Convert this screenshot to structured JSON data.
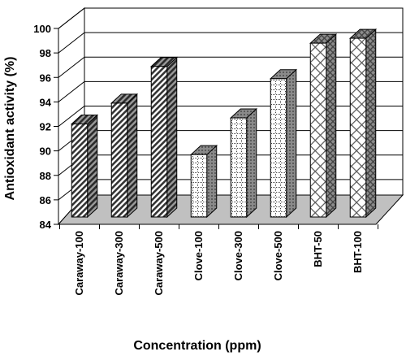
{
  "chart_data": {
    "type": "bar",
    "title": "",
    "xlabel": "Concentration (ppm)",
    "ylabel": "Antioxidant activity (%)",
    "ylim": [
      84,
      100
    ],
    "yticks": [
      84,
      86,
      88,
      90,
      92,
      94,
      96,
      98,
      100
    ],
    "categories": [
      "Caraway-100",
      "Caraway-300",
      "Caraway-500",
      "Clove-100",
      "Clove-300",
      "Clove-500",
      "BHT-50",
      "BHT-100"
    ],
    "values": [
      91.6,
      93.3,
      96.3,
      89.1,
      92.1,
      95.3,
      98.2,
      98.6
    ],
    "grid": true,
    "style": "3d",
    "fill_patterns": [
      "diagonal-hatch",
      "diagonal-hatch",
      "diagonal-hatch",
      "dotted-grid",
      "dotted-grid",
      "dotted-grid",
      "crosshatch",
      "crosshatch"
    ]
  }
}
